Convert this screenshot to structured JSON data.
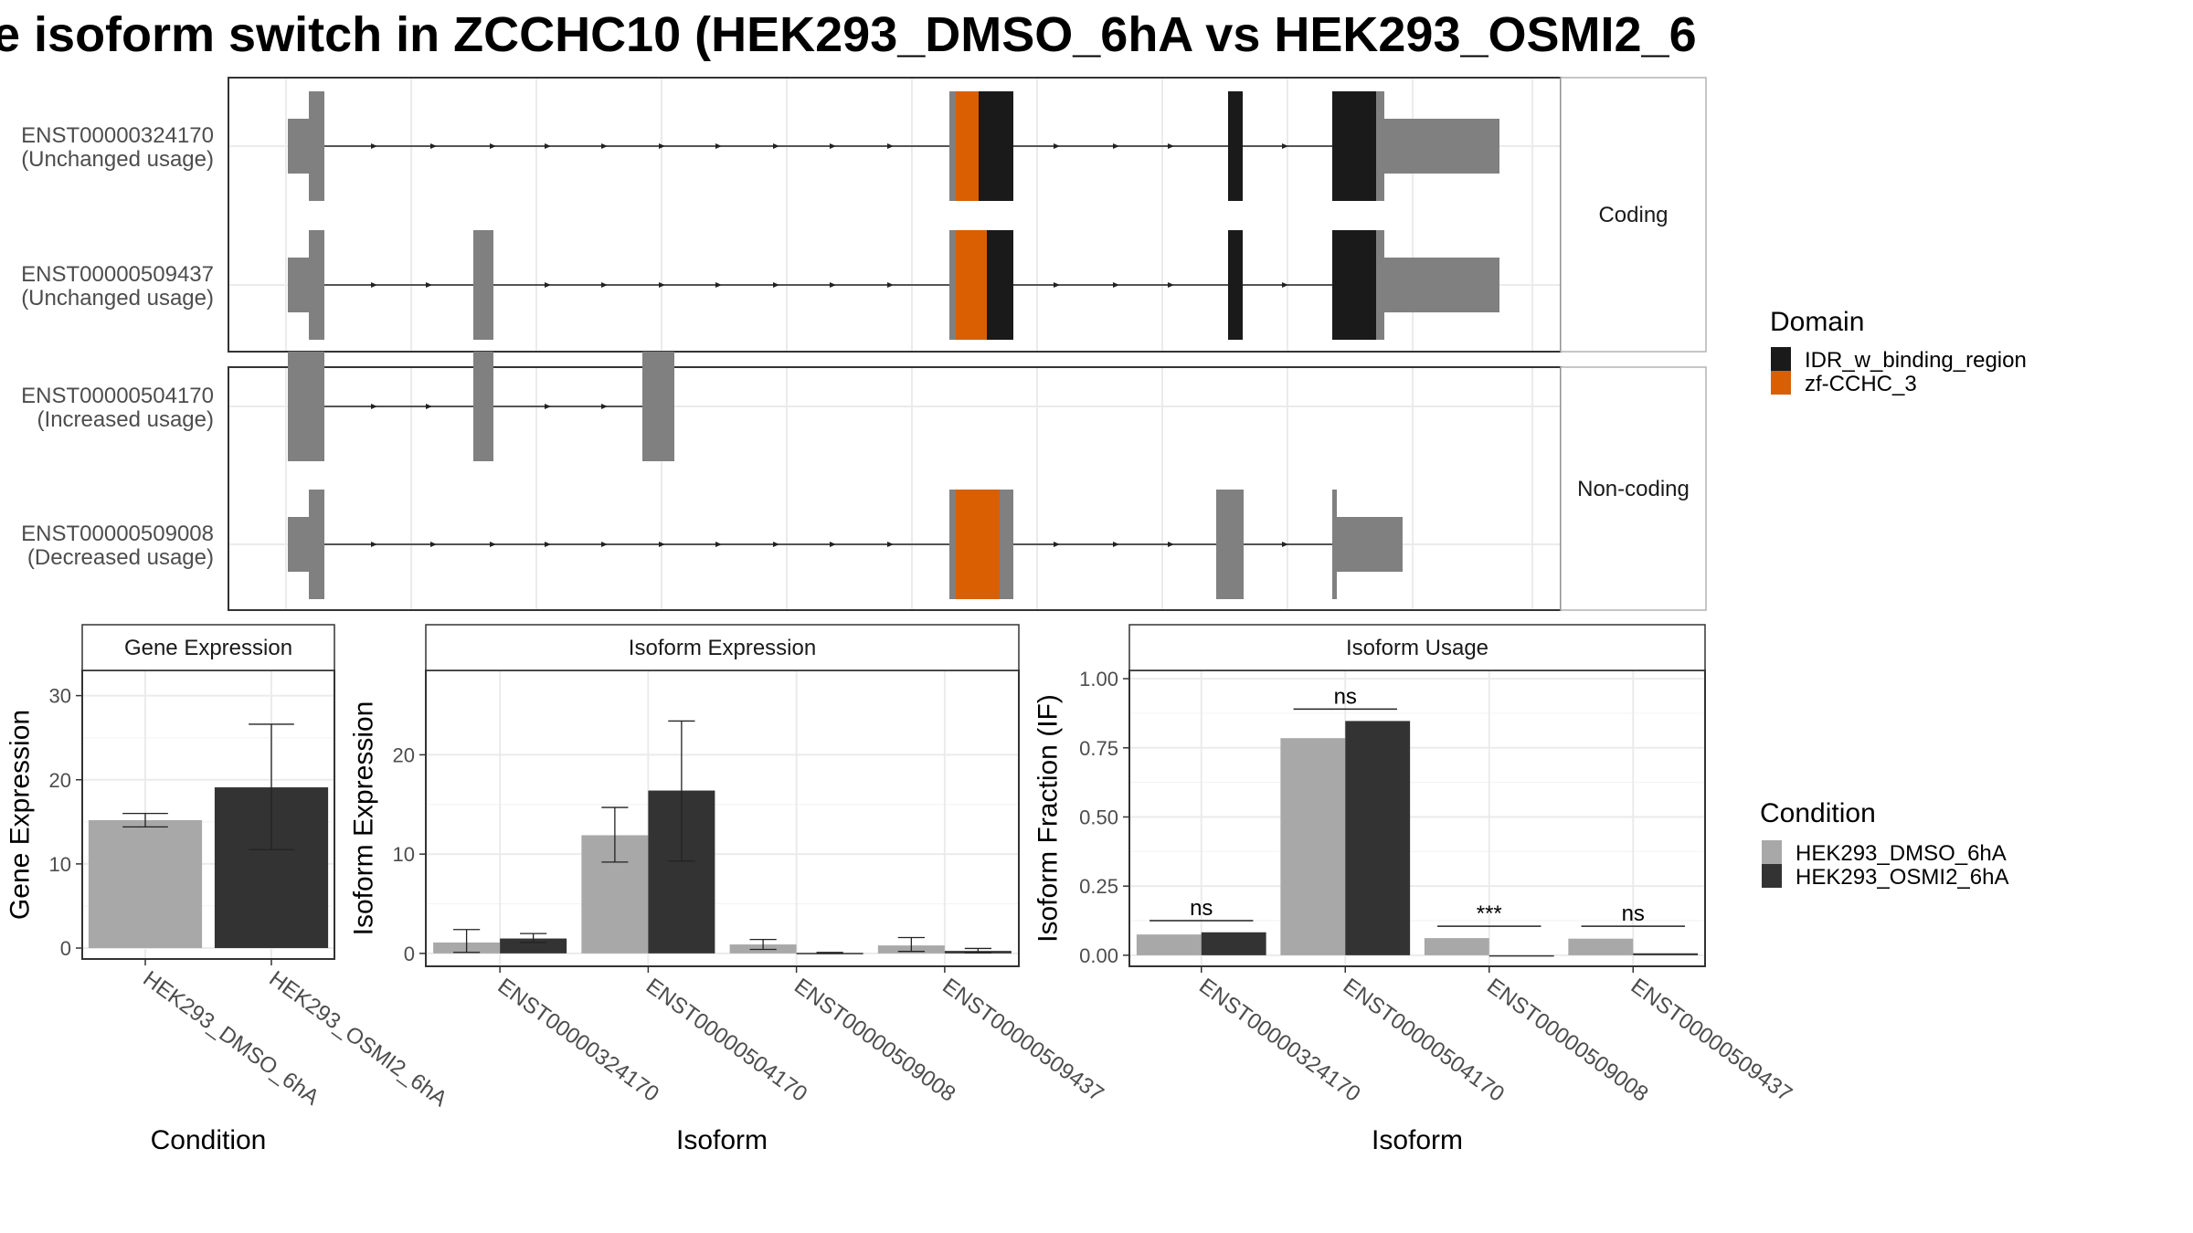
{
  "title": "e isoform switch in ZCCHC10 (HEK293_DMSO_6hA vs HEK293_OSMI2_6",
  "colors": {
    "idr": "#1a1a1a",
    "zf": "#d95f02",
    "exon_plain": "#808080",
    "dmso": "#a8a8a8",
    "osmi": "#333333",
    "grid": "#ebebeb",
    "strip_bg": "#ffffff"
  },
  "chart_data": [
    {
      "type": "gene-structure",
      "facets": [
        "Coding",
        "Non-coding"
      ],
      "transcripts": [
        {
          "id": "ENST00000324170",
          "usage": "(Unchanged usage)",
          "facet": "Coding"
        },
        {
          "id": "ENST00000509437",
          "usage": "(Unchanged usage)",
          "facet": "Coding"
        },
        {
          "id": "ENST00000504170",
          "usage": "(Increased usage)",
          "facet": "Non-coding"
        },
        {
          "id": "ENST00000509008",
          "usage": "(Decreased usage)",
          "facet": "Non-coding"
        }
      ],
      "legend": {
        "title": "Domain",
        "entries": [
          "IDR_w_binding_region",
          "zf-CCHC_3"
        ]
      }
    },
    {
      "type": "bar",
      "title": "Gene Expression",
      "xlabel": "Condition",
      "ylabel": "Gene Expression",
      "categories": [
        "HEK293_DMSO_6hA",
        "HEK293_OSMI2_6hA"
      ],
      "values": [
        15.2,
        19.1
      ],
      "err_low": [
        14.4,
        11.7
      ],
      "err_high": [
        16.0,
        26.6
      ],
      "ylim": [
        -1.3,
        33
      ],
      "yticks": [
        0,
        10,
        20,
        30
      ],
      "grid": true
    },
    {
      "type": "bar",
      "title": "Isoform Expression",
      "xlabel": "Isoform",
      "ylabel": "Isoform Expression",
      "categories": [
        "ENST00000324170",
        "ENST00000504170",
        "ENST00000509008",
        "ENST00000509437"
      ],
      "series": [
        {
          "name": "HEK293_DMSO_6hA",
          "values": [
            1.1,
            11.9,
            0.9,
            0.8
          ],
          "err_low": [
            0.1,
            9.2,
            0.4,
            0.2
          ],
          "err_high": [
            2.4,
            14.7,
            1.4,
            1.6
          ]
        },
        {
          "name": "HEK293_OSMI2_6hA",
          "values": [
            1.5,
            16.4,
            0.05,
            0.25
          ],
          "err_low": [
            1.1,
            9.3,
            0.0,
            0.05
          ],
          "err_high": [
            2.0,
            23.4,
            0.1,
            0.5
          ]
        }
      ],
      "ylim": [
        -1.3,
        28.5
      ],
      "yticks": [
        0,
        10,
        20
      ],
      "grid": true
    },
    {
      "type": "bar",
      "title": "Isoform Usage",
      "xlabel": "Isoform",
      "ylabel": "Isoform Fraction (IF)",
      "categories": [
        "ENST00000324170",
        "ENST00000504170",
        "ENST00000509008",
        "ENST00000509437"
      ],
      "series": [
        {
          "name": "HEK293_DMSO_6hA",
          "values": [
            0.075,
            0.785,
            0.062,
            0.06
          ]
        },
        {
          "name": "HEK293_OSMI2_6hA",
          "values": [
            0.083,
            0.847,
            0.0,
            0.007
          ]
        }
      ],
      "significance": [
        "ns",
        "ns",
        "***",
        "ns"
      ],
      "sig_y": [
        0.125,
        0.89,
        0.105,
        0.105
      ],
      "ylim": [
        -0.04,
        1.03
      ],
      "yticks": [
        0.0,
        0.25,
        0.5,
        0.75,
        1.0
      ],
      "ytick_labels": [
        "0.00",
        "0.25",
        "0.50",
        "0.75",
        "1.00"
      ],
      "grid": true
    }
  ],
  "condition_legend": {
    "title": "Condition",
    "entries": [
      "HEK293_DMSO_6hA",
      "HEK293_OSMI2_6hA"
    ]
  }
}
